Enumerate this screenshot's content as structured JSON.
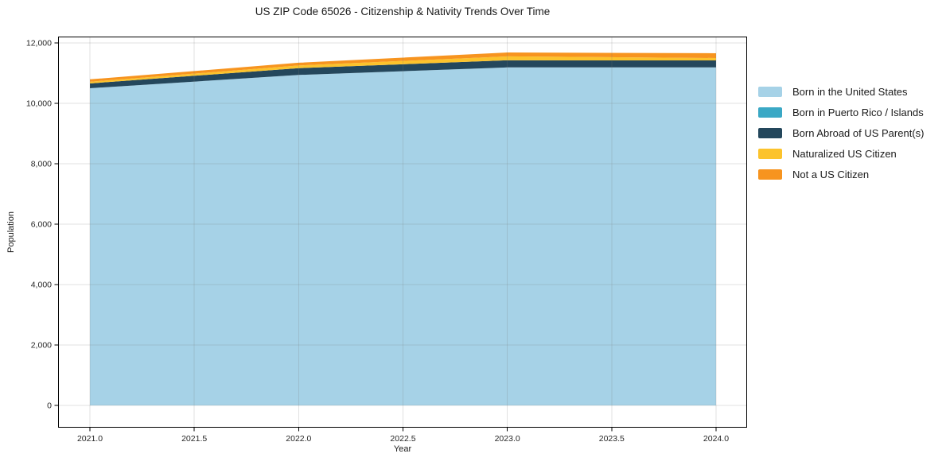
{
  "chart_data": {
    "type": "area",
    "stacked": true,
    "title": "US ZIP Code 65026 - Citizenship & Nativity Trends Over Time",
    "xlabel": "Year",
    "ylabel": "Population",
    "x": [
      2021,
      2022,
      2023,
      2024
    ],
    "series": [
      {
        "name": "Born in the United States",
        "color": "#a6d2e7",
        "values": [
          10500,
          10940,
          11190,
          11190
        ]
      },
      {
        "name": "Born in Puerto Rico / Islands",
        "color": "#3aa8c5",
        "values": [
          0,
          0,
          0,
          0
        ]
      },
      {
        "name": "Born Abroad of US Parent(s)",
        "color": "#24475c",
        "values": [
          160,
          225,
          235,
          230
        ]
      },
      {
        "name": "Naturalized US Citizen",
        "color": "#fcc32c",
        "values": [
          55,
          90,
          130,
          80
        ]
      },
      {
        "name": "Not a US Citizen",
        "color": "#f7941f",
        "values": [
          80,
          90,
          130,
          160
        ]
      }
    ],
    "xlim": [
      2020.8475,
      2024.1487
    ],
    "ylim": [
      -737,
      12211
    ],
    "xticks": {
      "values": [
        2021.0,
        2021.5,
        2022.0,
        2022.5,
        2023.0,
        2023.5,
        2024.0
      ],
      "labels": [
        "2021.0",
        "2021.5",
        "2022.0",
        "2022.5",
        "2023.0",
        "2023.5",
        "2024.0"
      ]
    },
    "yticks": {
      "values": [
        0,
        2000,
        4000,
        6000,
        8000,
        10000,
        12000
      ],
      "labels": [
        "0",
        "2,000",
        "4,000",
        "6,000",
        "8,000",
        "10,000",
        "12,000"
      ]
    },
    "grid": true,
    "legend_position": "right of plot, no frame",
    "colors": {
      "axis": "#000000",
      "tick_label": "#262626",
      "grid": "rgba(120,120,120,0.22)",
      "background": "#ffffff"
    }
  }
}
